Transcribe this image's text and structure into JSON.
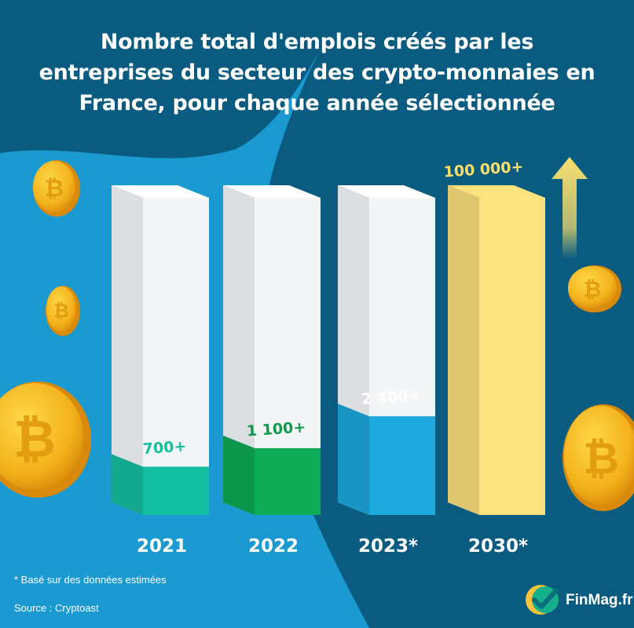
{
  "header": {
    "title_lines": [
      "Nombre total d'emplois créés par les",
      "entreprises du secteur des crypto-monnaies en",
      "France, pour chaque année sélectionnée"
    ]
  },
  "chart_data": {
    "type": "bar",
    "title": "Nombre total d'emplois créés par les entreprises du secteur des crypto-monnaies en France, pour chaque année sélectionnée",
    "categories": [
      "2021",
      "2022",
      "2023*",
      "2030*"
    ],
    "values": [
      700,
      1100,
      2400,
      100000
    ],
    "data_labels": [
      "700+",
      "1 100+",
      "2 400+",
      "100 000+"
    ],
    "bar_colors": [
      "#13bfa0",
      "#0dab55",
      "#1da9de",
      "#fde27e"
    ],
    "label_colors": [
      "#17bfa0",
      "#0f9a4c",
      "#ffffff",
      "#f9df6e"
    ],
    "axis_visible": false,
    "grid": false,
    "legend": "none"
  },
  "footnote": "* Basé sur des données estimées",
  "source": "Source : Cryptoast",
  "brand": {
    "name": "FinMag.fr"
  },
  "colors": {
    "background_light": "#1b9ad2",
    "background_dark": "#0a5b80",
    "coin": "#f3b21b",
    "arrow": "#f9df6e",
    "placeholder_bar": "#f4f5f6"
  },
  "icons": [
    "bitcoin-coin-icon",
    "up-arrow-icon",
    "finmag-logo-icon"
  ]
}
